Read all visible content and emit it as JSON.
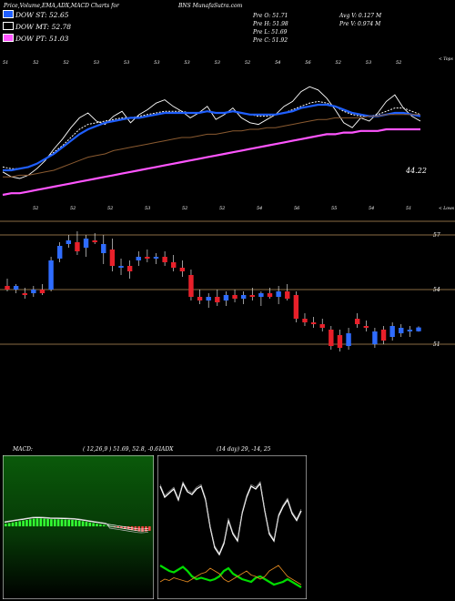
{
  "header": {
    "title": "Price,Volume,EMA,ADX,MACD Charts for",
    "symbol_site": "BNS MunafaSutra.com"
  },
  "legend": [
    {
      "label": "DOW ST: 52.65",
      "color": "#1f5fff"
    },
    {
      "label": "DOW MT: 52.78",
      "color": "#000000"
    },
    {
      "label": "DOW PT: 51.03",
      "color": "#ff55ff"
    }
  ],
  "info": {
    "col1": [
      "Pre  O: 51.71",
      "Pre  H: 51.98",
      "Pre  L: 51.69",
      "Pre  C: 51.92"
    ],
    "col2": [
      "Avg V: 0.127  M",
      "Pre  V: 0.974  M"
    ]
  },
  "panel_top": {
    "top_right": "< Tops",
    "bottom_right": "< Lows",
    "price_label": "44.22",
    "top_ticks": [
      "51",
      "52",
      "52",
      "53",
      "53",
      "53",
      "53",
      "53",
      "52",
      "54",
      "56",
      "52",
      "53",
      "52"
    ],
    "bottom_ticks": [
      "52",
      "52",
      "52",
      "53",
      "52",
      "52",
      "54",
      "56",
      "55",
      "54",
      "51"
    ]
  },
  "chart_data": [
    {
      "type": "line",
      "title": "Price, EMA",
      "series": [
        {
          "name": "Price",
          "color": "#ffffff",
          "values": [
            52.9,
            52.6,
            52.5,
            52.7,
            53.1,
            53.6,
            54.3,
            54.9,
            55.6,
            56.2,
            56.5,
            56.0,
            55.8,
            56.3,
            56.6,
            55.9,
            56.4,
            56.7,
            57.1,
            57.3,
            56.9,
            56.6,
            56.2,
            56.5,
            56.9,
            56.1,
            56.4,
            56.8,
            56.2,
            55.9,
            55.8,
            56.1,
            56.4,
            56.9,
            57.2,
            57.8,
            58.1,
            57.9,
            57.4,
            56.7,
            55.9,
            55.6,
            56.2,
            56.0,
            56.5,
            57.2,
            57.6,
            56.8,
            56.3,
            56.0
          ]
        },
        {
          "name": "EMA fast",
          "color": "#ffffff",
          "dashed": true,
          "values": [
            53.2,
            53.1,
            53.1,
            53.2,
            53.4,
            53.7,
            54.1,
            54.5,
            55.0,
            55.5,
            55.8,
            55.9,
            56.0,
            56.1,
            56.2,
            56.2,
            56.3,
            56.4,
            56.5,
            56.6,
            56.6,
            56.6,
            56.5,
            56.5,
            56.6,
            56.5,
            56.5,
            56.6,
            56.5,
            56.4,
            56.3,
            56.3,
            56.4,
            56.5,
            56.7,
            56.9,
            57.1,
            57.2,
            57.1,
            56.9,
            56.6,
            56.4,
            56.3,
            56.3,
            56.4,
            56.6,
            56.8,
            56.8,
            56.6,
            56.4
          ]
        },
        {
          "name": "DOW ST",
          "color": "#1f5fff",
          "values": [
            53.0,
            53.0,
            53.1,
            53.2,
            53.4,
            53.7,
            54.0,
            54.4,
            54.8,
            55.2,
            55.5,
            55.7,
            55.9,
            56.0,
            56.1,
            56.2,
            56.2,
            56.3,
            56.4,
            56.5,
            56.5,
            56.5,
            56.5,
            56.5,
            56.6,
            56.5,
            56.5,
            56.6,
            56.5,
            56.4,
            56.4,
            56.4,
            56.4,
            56.5,
            56.6,
            56.8,
            56.9,
            57.0,
            57.0,
            56.9,
            56.7,
            56.5,
            56.4,
            56.3,
            56.3,
            56.4,
            56.5,
            56.5,
            56.4,
            56.3
          ]
        },
        {
          "name": "DOW MT",
          "color": "#8a5a30",
          "values": [
            52.6,
            52.6,
            52.7,
            52.7,
            52.8,
            52.9,
            53.0,
            53.2,
            53.4,
            53.6,
            53.8,
            53.9,
            54.0,
            54.2,
            54.3,
            54.4,
            54.5,
            54.6,
            54.7,
            54.8,
            54.9,
            55.0,
            55.0,
            55.1,
            55.2,
            55.2,
            55.3,
            55.4,
            55.4,
            55.5,
            55.5,
            55.6,
            55.6,
            55.7,
            55.8,
            55.9,
            56.0,
            56.1,
            56.1,
            56.2,
            56.2,
            56.2,
            56.2,
            56.3,
            56.3,
            56.4,
            56.4,
            56.4,
            56.4,
            56.4
          ]
        },
        {
          "name": "DOW PT",
          "color": "#ff55ff",
          "values": [
            51.5,
            51.6,
            51.6,
            51.7,
            51.8,
            51.9,
            52.0,
            52.1,
            52.2,
            52.3,
            52.4,
            52.5,
            52.6,
            52.7,
            52.8,
            52.9,
            53.0,
            53.1,
            53.2,
            53.3,
            53.4,
            53.5,
            53.6,
            53.7,
            53.8,
            53.9,
            54.0,
            54.1,
            54.2,
            54.3,
            54.4,
            54.5,
            54.6,
            54.7,
            54.8,
            54.9,
            55.0,
            55.1,
            55.2,
            55.2,
            55.3,
            55.3,
            55.4,
            55.4,
            55.4,
            55.5,
            55.5,
            55.5,
            55.5,
            55.5
          ]
        }
      ]
    },
    {
      "type": "candlestick",
      "title": "Price candles",
      "ylim": [
        50,
        58
      ],
      "yticks": [
        "57",
        "54",
        "51"
      ],
      "candles": [
        {
          "o": 54.2,
          "h": 54.6,
          "l": 53.9,
          "c": 54.0,
          "up": false
        },
        {
          "o": 54.0,
          "h": 54.3,
          "l": 53.8,
          "c": 54.2,
          "up": true
        },
        {
          "o": 53.8,
          "h": 54.1,
          "l": 53.5,
          "c": 53.7,
          "up": false
        },
        {
          "o": 53.8,
          "h": 54.2,
          "l": 53.6,
          "c": 54.0,
          "up": true
        },
        {
          "o": 54.0,
          "h": 54.3,
          "l": 53.7,
          "c": 53.8,
          "up": false
        },
        {
          "o": 54.0,
          "h": 55.8,
          "l": 53.9,
          "c": 55.6,
          "up": true
        },
        {
          "o": 55.7,
          "h": 56.6,
          "l": 55.5,
          "c": 56.4,
          "up": true
        },
        {
          "o": 56.5,
          "h": 57.0,
          "l": 56.3,
          "c": 56.7,
          "up": true
        },
        {
          "o": 56.6,
          "h": 57.2,
          "l": 55.9,
          "c": 56.1,
          "up": false
        },
        {
          "o": 56.3,
          "h": 57.0,
          "l": 55.8,
          "c": 56.8,
          "up": true
        },
        {
          "o": 56.7,
          "h": 57.1,
          "l": 56.5,
          "c": 56.6,
          "up": false
        },
        {
          "o": 56.5,
          "h": 57.0,
          "l": 55.4,
          "c": 56.0,
          "up": true
        },
        {
          "o": 56.2,
          "h": 56.8,
          "l": 55.0,
          "c": 55.3,
          "up": false
        },
        {
          "o": 55.2,
          "h": 55.7,
          "l": 54.8,
          "c": 55.3,
          "up": true
        },
        {
          "o": 55.3,
          "h": 55.6,
          "l": 54.6,
          "c": 55.0,
          "up": false
        },
        {
          "o": 55.6,
          "h": 56.1,
          "l": 55.3,
          "c": 55.8,
          "up": true
        },
        {
          "o": 55.8,
          "h": 56.2,
          "l": 55.5,
          "c": 55.7,
          "up": false
        },
        {
          "o": 55.7,
          "h": 56.0,
          "l": 55.4,
          "c": 55.8,
          "up": true
        },
        {
          "o": 55.8,
          "h": 56.1,
          "l": 55.3,
          "c": 55.5,
          "up": false
        },
        {
          "o": 55.5,
          "h": 55.9,
          "l": 55.0,
          "c": 55.2,
          "up": false
        },
        {
          "o": 55.2,
          "h": 55.6,
          "l": 54.7,
          "c": 55.0,
          "up": false
        },
        {
          "o": 54.8,
          "h": 55.1,
          "l": 53.4,
          "c": 53.6,
          "up": false
        },
        {
          "o": 53.6,
          "h": 54.0,
          "l": 53.2,
          "c": 53.4,
          "up": false
        },
        {
          "o": 53.4,
          "h": 53.8,
          "l": 53.0,
          "c": 53.6,
          "up": true
        },
        {
          "o": 53.6,
          "h": 54.0,
          "l": 53.1,
          "c": 53.3,
          "up": false
        },
        {
          "o": 53.4,
          "h": 53.9,
          "l": 53.1,
          "c": 53.7,
          "up": true
        },
        {
          "o": 53.7,
          "h": 54.0,
          "l": 53.3,
          "c": 53.5,
          "up": false
        },
        {
          "o": 53.5,
          "h": 53.9,
          "l": 53.2,
          "c": 53.7,
          "up": true
        },
        {
          "o": 53.7,
          "h": 54.1,
          "l": 53.4,
          "c": 53.6,
          "up": false
        },
        {
          "o": 53.6,
          "h": 53.9,
          "l": 53.1,
          "c": 53.8,
          "up": true
        },
        {
          "o": 53.8,
          "h": 54.1,
          "l": 53.5,
          "c": 53.6,
          "up": false
        },
        {
          "o": 53.6,
          "h": 54.2,
          "l": 53.2,
          "c": 53.9,
          "up": true
        },
        {
          "o": 53.9,
          "h": 54.3,
          "l": 53.4,
          "c": 53.5,
          "up": false
        },
        {
          "o": 53.7,
          "h": 53.9,
          "l": 52.2,
          "c": 52.4,
          "up": false
        },
        {
          "o": 52.4,
          "h": 52.7,
          "l": 52.0,
          "c": 52.2,
          "up": false
        },
        {
          "o": 52.2,
          "h": 52.5,
          "l": 51.9,
          "c": 52.1,
          "up": false
        },
        {
          "o": 52.1,
          "h": 52.4,
          "l": 51.7,
          "c": 51.9,
          "up": false
        },
        {
          "o": 51.8,
          "h": 52.0,
          "l": 50.7,
          "c": 50.9,
          "up": false
        },
        {
          "o": 51.5,
          "h": 51.8,
          "l": 50.6,
          "c": 50.8,
          "up": false
        },
        {
          "o": 50.9,
          "h": 51.9,
          "l": 50.7,
          "c": 51.6,
          "up": true
        },
        {
          "o": 52.4,
          "h": 52.7,
          "l": 51.9,
          "c": 52.1,
          "up": false
        },
        {
          "o": 52.0,
          "h": 52.3,
          "l": 51.7,
          "c": 51.9,
          "up": false
        },
        {
          "o": 51.0,
          "h": 51.9,
          "l": 50.8,
          "c": 51.7,
          "up": true
        },
        {
          "o": 51.8,
          "h": 52.0,
          "l": 51.0,
          "c": 51.2,
          "up": false
        },
        {
          "o": 51.4,
          "h": 52.2,
          "l": 51.2,
          "c": 52.0,
          "up": true
        },
        {
          "o": 51.6,
          "h": 52.1,
          "l": 51.4,
          "c": 51.9,
          "up": true
        },
        {
          "o": 51.7,
          "h": 52.0,
          "l": 51.4,
          "c": 51.8,
          "up": true
        },
        {
          "o": 51.71,
          "h": 51.98,
          "l": 51.69,
          "c": 51.92,
          "up": true
        }
      ]
    },
    {
      "type": "line",
      "title": "MACD",
      "label": "MACD:",
      "params": "( 12,26,9 ) 51.69,  52.8,  -0.61",
      "histogram": [
        0.2,
        0.25,
        0.3,
        0.35,
        0.4,
        0.45,
        0.5,
        0.55,
        0.6,
        0.62,
        0.62,
        0.6,
        0.58,
        0.56,
        0.55,
        0.55,
        0.54,
        0.53,
        0.52,
        0.5,
        0.48,
        0.45,
        0.4,
        0.35,
        0.3,
        0.25,
        0.2,
        0.15,
        0.1,
        0.05,
        0.0,
        -0.05,
        -0.1,
        -0.15,
        -0.2,
        -0.25,
        -0.3,
        -0.35,
        -0.4,
        -0.42,
        -0.4,
        -0.35
      ]
    },
    {
      "type": "line",
      "title": "ADX",
      "label": "ADX",
      "params": "(14  day) 29,  -14,  25",
      "series": [
        {
          "name": "ADX",
          "color": "#ffffff",
          "values": [
            80,
            72,
            75,
            78,
            70,
            82,
            76,
            74,
            78,
            80,
            70,
            50,
            35,
            30,
            38,
            55,
            45,
            40,
            60,
            72,
            80,
            78,
            82,
            62,
            45,
            40,
            58,
            65,
            70,
            60,
            55,
            62
          ]
        },
        {
          "name": "+DI",
          "color": "#00dd00",
          "values": [
            22,
            20,
            18,
            17,
            19,
            21,
            18,
            14,
            12,
            13,
            12,
            11,
            12,
            14,
            18,
            20,
            16,
            14,
            12,
            11,
            10,
            13,
            14,
            12,
            10,
            8,
            9,
            10,
            12,
            10,
            8,
            6
          ]
        },
        {
          "name": "-DI",
          "color": "#e08820",
          "values": [
            10,
            12,
            11,
            13,
            12,
            11,
            10,
            12,
            14,
            16,
            17,
            20,
            18,
            16,
            12,
            10,
            12,
            14,
            16,
            18,
            15,
            14,
            12,
            14,
            18,
            20,
            22,
            18,
            14,
            12,
            10,
            8
          ]
        }
      ]
    }
  ]
}
